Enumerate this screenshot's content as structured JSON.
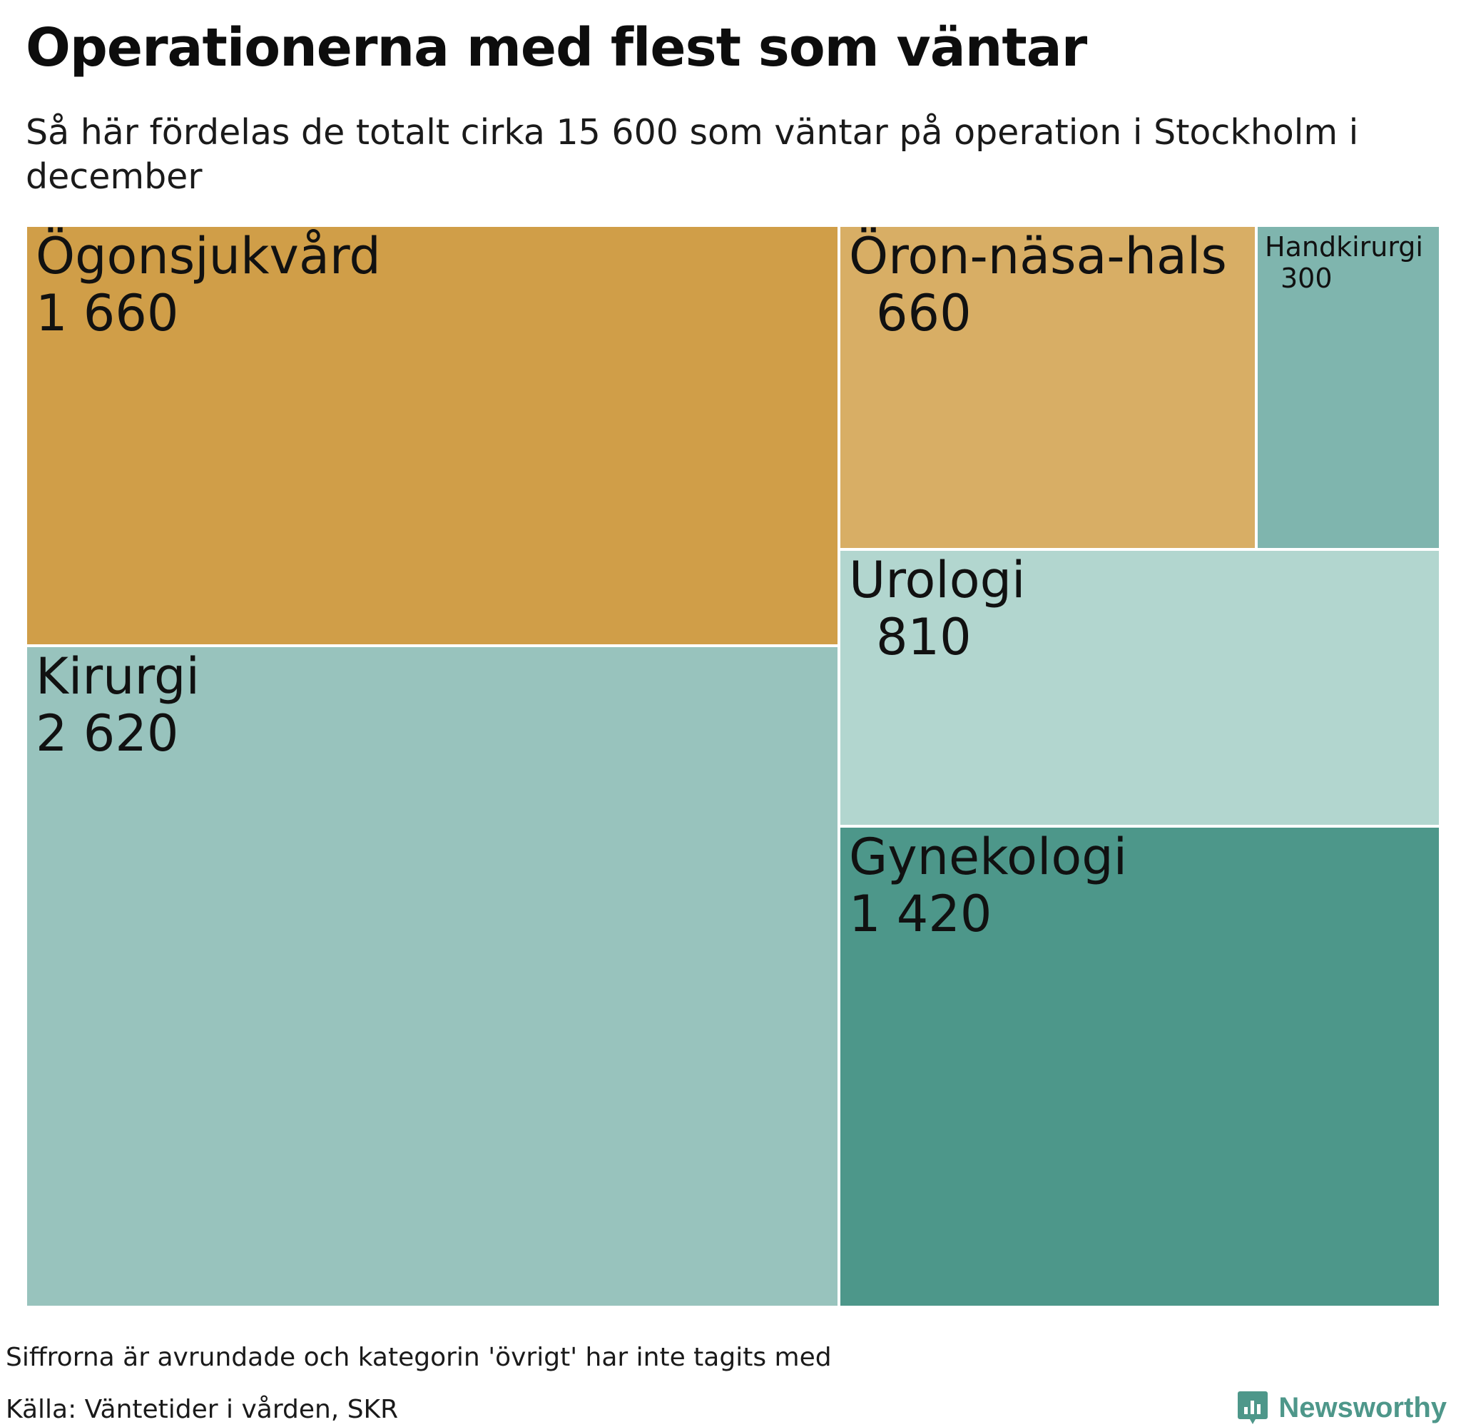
{
  "title": "Operationerna med flest som väntar",
  "subtitle": "Så här fördelas de totalt cirka 15 600 som väntar på operation i Stockholm i december",
  "note": "Siffrorna är avrundade och kategorin 'övrigt' har inte tagits med",
  "source": "Källa: Väntetider i vården, SKR",
  "brand": {
    "name": "Newsworthy",
    "icon": "newsworthy-logo-icon",
    "color": "#4e978a"
  },
  "chart_data": {
    "type": "treemap",
    "title": "Operationerna med flest som väntar",
    "unit": "",
    "categories": [
      "Ögonsjukvård",
      "Kirurgi",
      "Öron-näsa-hals",
      "Handkirurgi",
      "Urologi",
      "Gynekologi"
    ],
    "values": [
      1660,
      2620,
      660,
      300,
      810,
      1420
    ],
    "value_labels": [
      "1 660",
      "2 620",
      "660",
      "300",
      "810",
      "1 420"
    ],
    "colors": [
      "#d09e48",
      "#98c3bd",
      "#d8ae65",
      "#7fb5ae",
      "#b2d6cf",
      "#4d978a"
    ]
  }
}
